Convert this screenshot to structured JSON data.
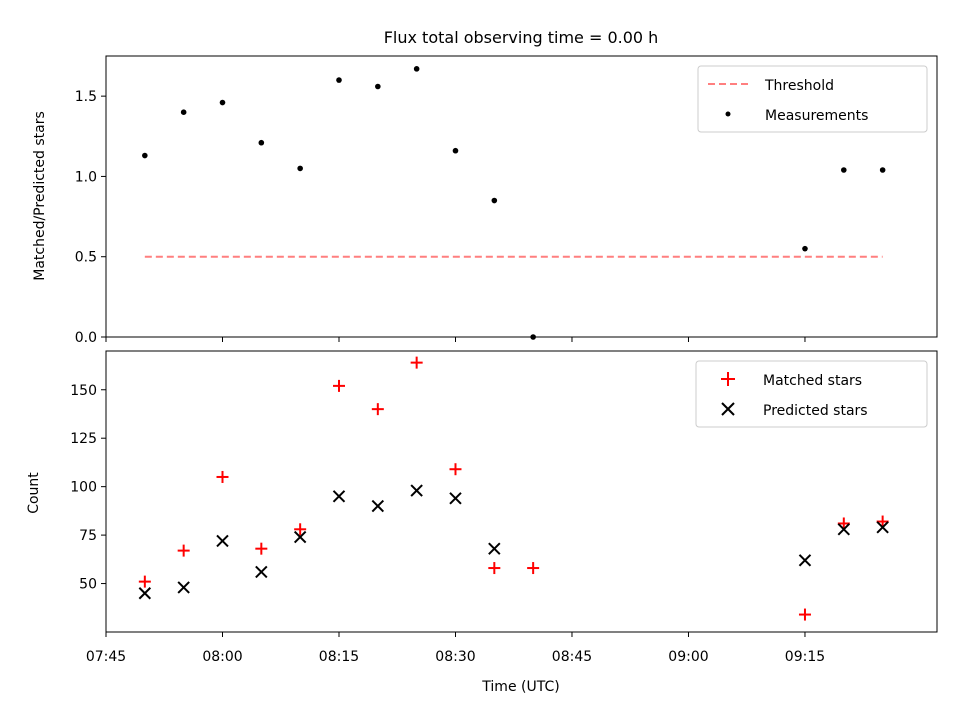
{
  "figure": {
    "title": "Flux total observing time = 0.00 h",
    "xlabel": "Time (UTC)"
  },
  "chart_data": [
    {
      "type": "scatter",
      "ylabel": "Matched/Predicted stars",
      "ylim": [
        0,
        1.75
      ],
      "yticks": [
        0.0,
        0.5,
        1.0,
        1.5
      ],
      "ytick_labels": [
        "0.0",
        "0.5",
        "1.0",
        "1.5"
      ],
      "legend_position": "upper-right",
      "threshold": {
        "name": "Threshold",
        "value": 0.5,
        "x_start": "07:50",
        "x_end": "09:25",
        "color": "#ff7f7f"
      },
      "series": [
        {
          "name": "Measurements",
          "marker": "dot",
          "color": "#000000",
          "x": [
            "07:50",
            "07:55",
            "08:00",
            "08:05",
            "08:10",
            "08:15",
            "08:20",
            "08:25",
            "08:30",
            "08:35",
            "08:40",
            "09:15",
            "09:20",
            "09:25"
          ],
          "y": [
            1.13,
            1.4,
            1.46,
            1.21,
            1.05,
            1.6,
            1.56,
            1.67,
            1.16,
            0.85,
            0.0,
            0.55,
            1.04,
            1.04
          ]
        }
      ]
    },
    {
      "type": "scatter",
      "ylabel": "Count",
      "ylim": [
        25,
        170
      ],
      "yticks": [
        50,
        75,
        100,
        125,
        150
      ],
      "ytick_labels": [
        "50",
        "75",
        "100",
        "125",
        "150"
      ],
      "legend_position": "upper-right",
      "series": [
        {
          "name": "Matched stars",
          "marker": "plus",
          "color": "#ff0000",
          "x": [
            "07:50",
            "07:55",
            "08:00",
            "08:05",
            "08:10",
            "08:15",
            "08:20",
            "08:25",
            "08:30",
            "08:35",
            "08:40",
            "09:15",
            "09:20",
            "09:25"
          ],
          "y": [
            51,
            67,
            105,
            68,
            78,
            152,
            140,
            164,
            109,
            58,
            58,
            34,
            81,
            82
          ]
        },
        {
          "name": "Predicted stars",
          "marker": "x",
          "color": "#000000",
          "x": [
            "07:50",
            "07:55",
            "08:00",
            "08:05",
            "08:10",
            "08:15",
            "08:20",
            "08:25",
            "08:30",
            "08:35",
            "09:15",
            "09:20",
            "09:25"
          ],
          "y": [
            45,
            48,
            72,
            56,
            74,
            95,
            90,
            98,
            94,
            68,
            62,
            78,
            79
          ]
        }
      ]
    }
  ],
  "x_axis": {
    "range": [
      "07:45",
      "09:32"
    ],
    "ticks": [
      "07:45",
      "08:00",
      "08:15",
      "08:30",
      "08:45",
      "09:00",
      "09:15"
    ]
  }
}
